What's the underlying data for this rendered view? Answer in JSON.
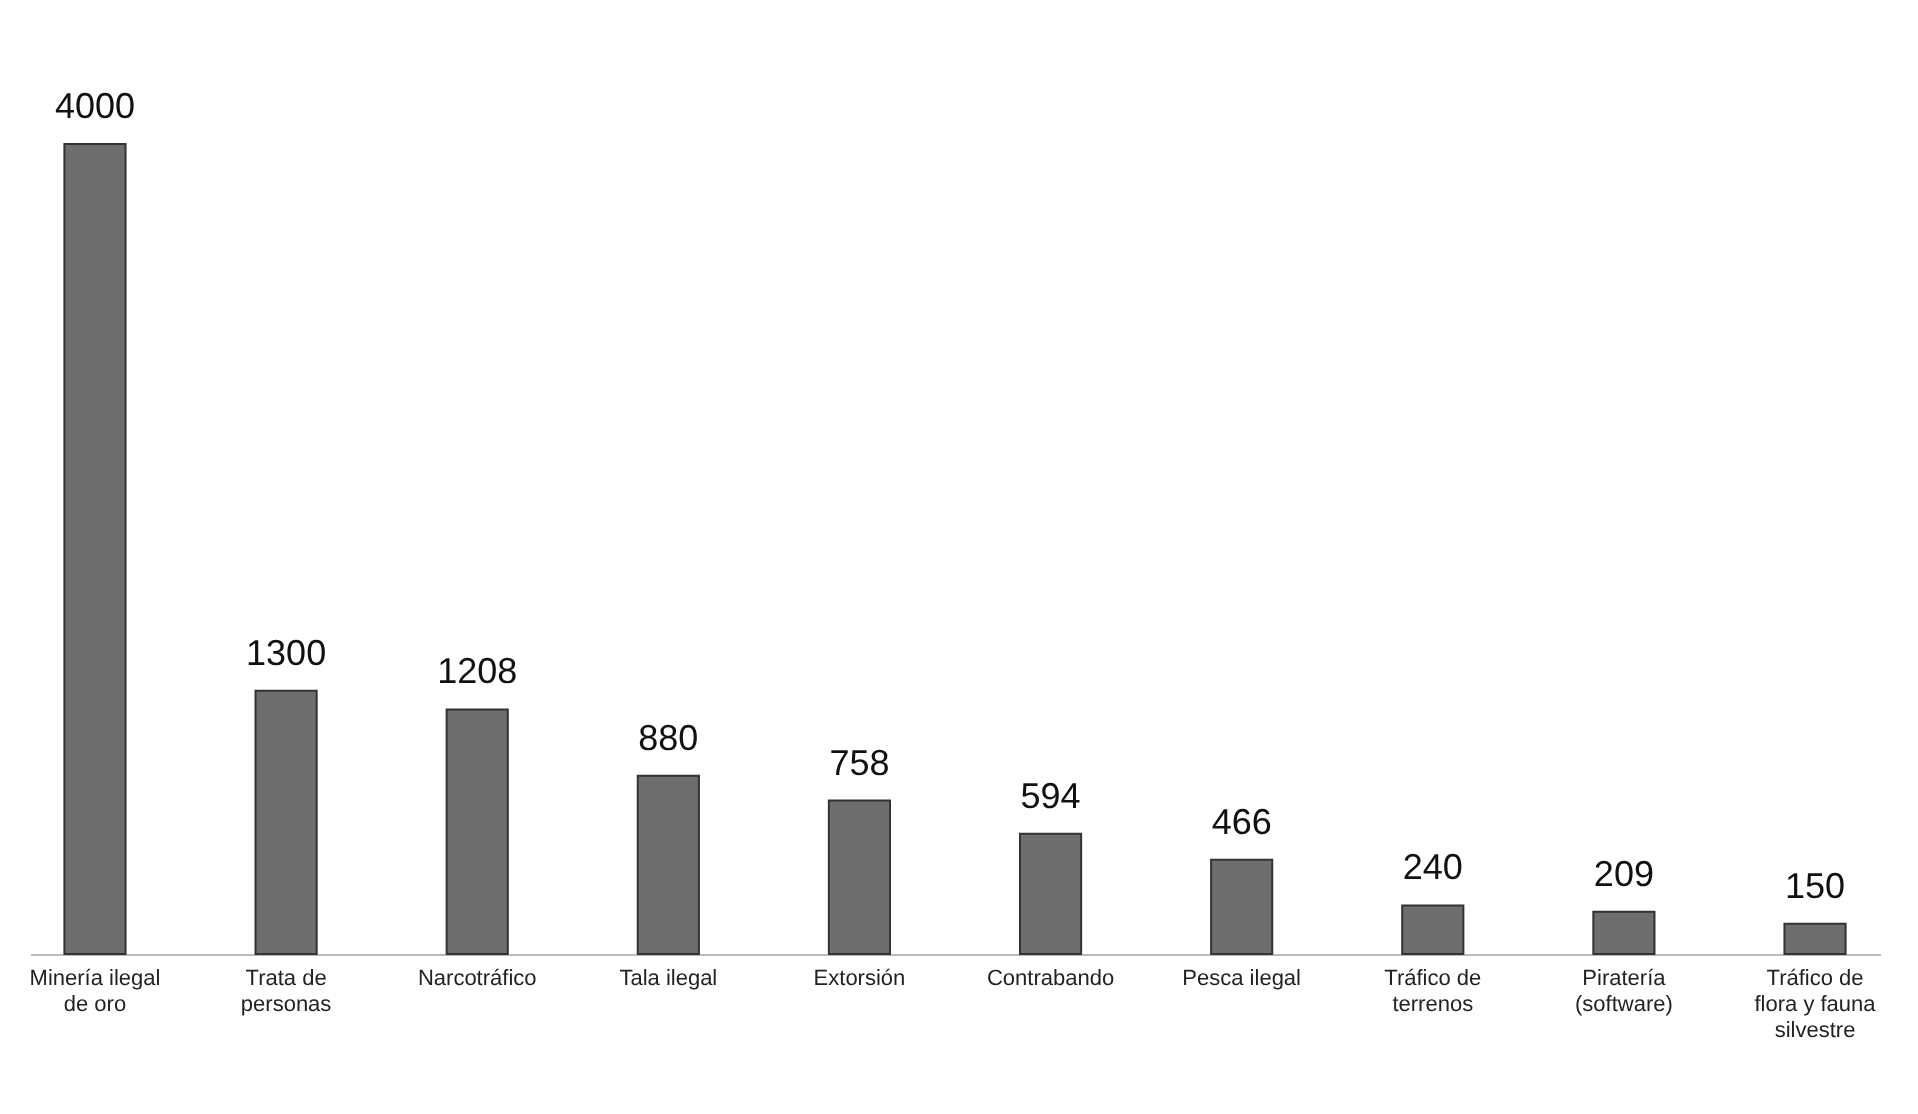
{
  "chart_data": {
    "type": "bar",
    "categories": [
      "Minería ilegal de oro",
      "Trata de personas",
      "Narcotráfico",
      "Tala ilegal",
      "Extorsión",
      "Contrabando",
      "Pesca ilegal",
      "Tráfico de terrenos",
      "Piratería (software)",
      "Tráfico de flora y fauna silvestre"
    ],
    "values": [
      4000,
      1300,
      1208,
      880,
      758,
      594,
      466,
      240,
      209,
      150
    ],
    "color": "#6e6e6e",
    "ylim": [
      0,
      4000
    ],
    "data_labels": true,
    "tick_labels": "x"
  }
}
